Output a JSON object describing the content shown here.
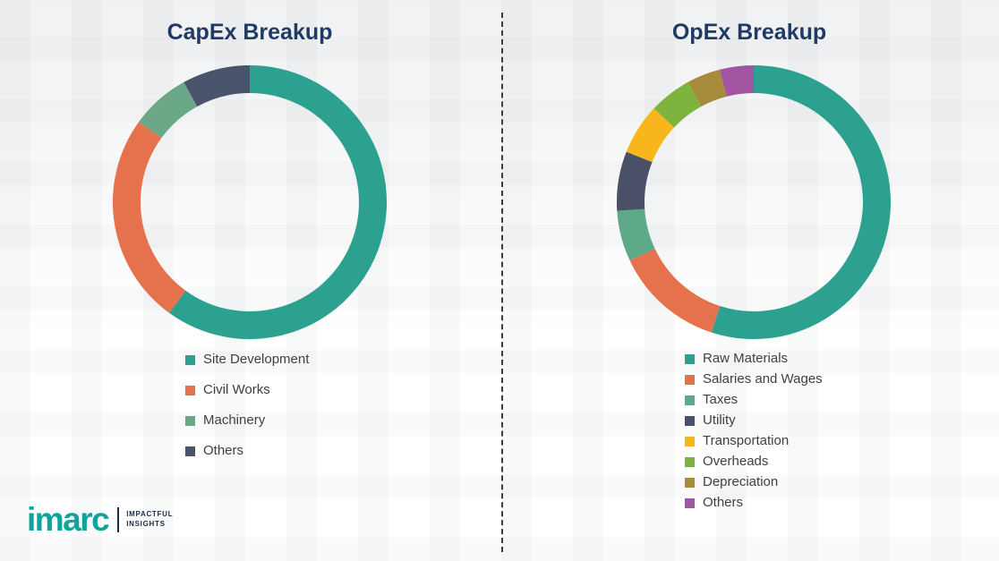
{
  "chart_data": [
    {
      "type": "pie",
      "variant": "donut",
      "title": "CapEx Breakup",
      "legend_position": "bottom-left",
      "segments": [
        {
          "label": "Site Development",
          "value": 60,
          "color": "#2DA18F"
        },
        {
          "label": "Civil Works",
          "value": 25,
          "color": "#E5714D"
        },
        {
          "label": "Machinery",
          "value": 7,
          "color": "#6BA888"
        },
        {
          "label": "Others",
          "value": 8,
          "color": "#49536B"
        }
      ]
    },
    {
      "type": "pie",
      "variant": "donut",
      "title": "OpEx Breakup",
      "legend_position": "bottom-left",
      "segments": [
        {
          "label": "Raw Materials",
          "value": 55,
          "color": "#2DA18F"
        },
        {
          "label": "Salaries and Wages",
          "value": 13,
          "color": "#E5714D"
        },
        {
          "label": "Taxes",
          "value": 6,
          "color": "#5EA988"
        },
        {
          "label": "Utility",
          "value": 7,
          "color": "#495068"
        },
        {
          "label": "Transportation",
          "value": 6,
          "color": "#F8B61C"
        },
        {
          "label": "Overheads",
          "value": 5,
          "color": "#7EB33E"
        },
        {
          "label": "Depreciation",
          "value": 4,
          "color": "#A68B3D"
        },
        {
          "label": "Others",
          "value": 4,
          "color": "#A255A0"
        }
      ]
    }
  ],
  "logo": {
    "brand": "imarc",
    "tagline": [
      "IMPACTFUL",
      "INSIGHTS"
    ]
  },
  "colors": {
    "title": "#203A66",
    "legend_text": "#404040",
    "divider": "#3c3c3c",
    "brand_teal": "#10A39A"
  }
}
